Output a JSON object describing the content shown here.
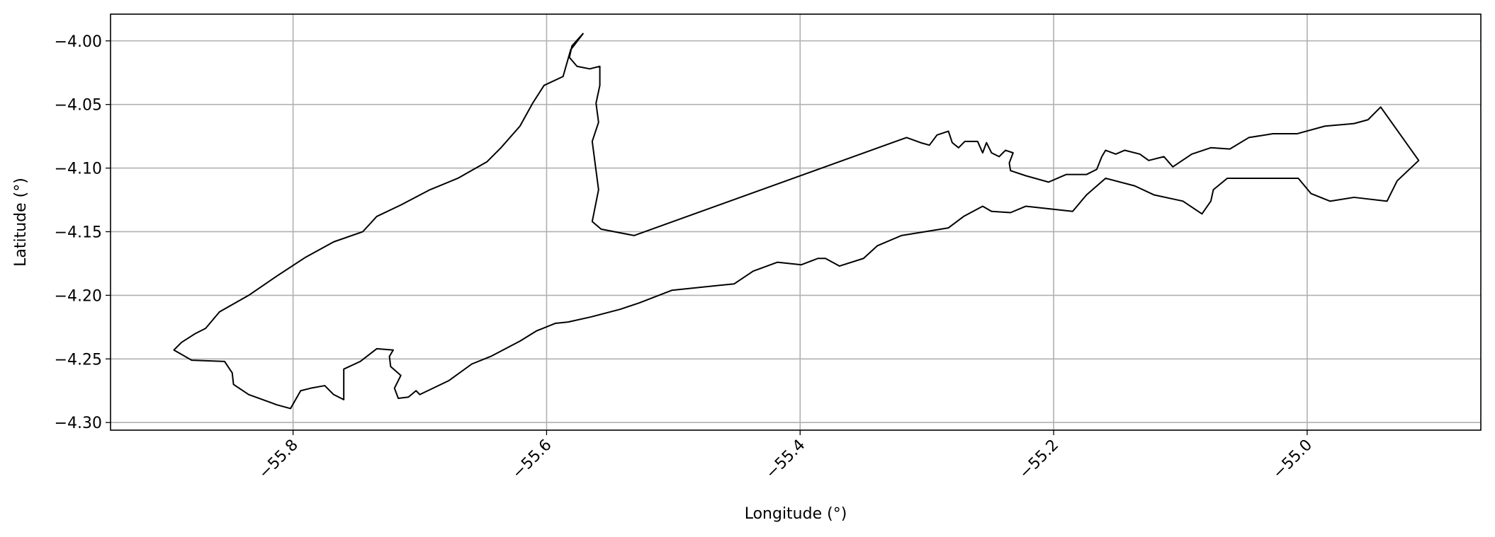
{
  "chart_data": {
    "type": "line",
    "xlabel": "Longitude (°)",
    "ylabel": "Latitude (°)",
    "xlim": [
      -55.944,
      -54.863
    ],
    "ylim": [
      -4.306,
      -3.979
    ],
    "xticks": [
      {
        "value": -55.8,
        "label": "−55.8"
      },
      {
        "value": -55.6,
        "label": "−55.6"
      },
      {
        "value": -55.4,
        "label": "−55.4"
      },
      {
        "value": -55.2,
        "label": "−55.2"
      },
      {
        "value": -55.0,
        "label": "−55.0"
      }
    ],
    "yticks": [
      {
        "value": -4.0,
        "label": "−4.00"
      },
      {
        "value": -4.05,
        "label": "−4.05"
      },
      {
        "value": -4.1,
        "label": "−4.10"
      },
      {
        "value": -4.15,
        "label": "−4.15"
      },
      {
        "value": -4.2,
        "label": "−4.20"
      },
      {
        "value": -4.25,
        "label": "−4.25"
      },
      {
        "value": -4.3,
        "label": "−4.30"
      }
    ],
    "grid": true,
    "series": [
      {
        "color": "#000000",
        "x": [
          -55.571,
          -55.58,
          -55.582,
          -55.576,
          -55.566,
          -55.558,
          -55.558,
          -55.561,
          -55.559,
          -55.564,
          -55.559,
          -55.564,
          -55.557,
          -55.531,
          -55.316,
          -55.305,
          -55.298,
          -55.292,
          -55.283,
          -55.28,
          -55.275,
          -55.27,
          -55.26,
          -55.256,
          -55.253,
          -55.249,
          -55.243,
          -55.238,
          -55.232,
          -55.235,
          -55.234,
          -55.222,
          -55.204,
          -55.19,
          -55.174,
          -55.166,
          -55.162,
          -55.159,
          -55.151,
          -55.144,
          -55.132,
          -55.125,
          -55.113,
          -55.106,
          -55.091,
          -55.076,
          -55.061,
          -55.046,
          -55.027,
          -55.008,
          -54.986,
          -54.963,
          -54.952,
          -54.942,
          -54.912,
          -54.929,
          -54.937,
          -54.963,
          -54.982,
          -54.997,
          -55.007,
          -55.046,
          -55.063,
          -55.074,
          -55.076,
          -55.083,
          -55.098,
          -55.121,
          -55.136,
          -55.159,
          -55.174,
          -55.185,
          -55.222,
          -55.234,
          -55.249,
          -55.256,
          -55.271,
          -55.283,
          -55.32,
          -55.339,
          -55.35,
          -55.369,
          -55.38,
          -55.386,
          -55.399,
          -55.418,
          -55.437,
          -55.452,
          -55.501,
          -55.527,
          -55.542,
          -55.565,
          -55.583,
          -55.593,
          -55.608,
          -55.621,
          -55.644,
          -55.659,
          -55.677,
          -55.7,
          -55.703,
          -55.709,
          -55.717,
          -55.72,
          -55.715,
          -55.723,
          -55.724,
          -55.721,
          -55.734,
          -55.747,
          -55.76,
          -55.76,
          -55.768,
          -55.775,
          -55.786,
          -55.794,
          -55.802,
          -55.813,
          -55.835,
          -55.847,
          -55.848,
          -55.854,
          -55.88,
          -55.894,
          -55.888,
          -55.877,
          -55.869,
          -55.858,
          -55.835,
          -55.813,
          -55.79,
          -55.768,
          -55.745,
          -55.734,
          -55.715,
          -55.692,
          -55.67,
          -55.647,
          -55.636,
          -55.621,
          -55.611,
          -55.602,
          -55.587,
          -55.581,
          -55.571
        ],
        "values": [
          -3.994,
          -4.004,
          -4.013,
          -4.02,
          -4.022,
          -4.02,
          -4.035,
          -4.049,
          -4.064,
          -4.079,
          -4.117,
          -4.142,
          -4.148,
          -4.153,
          -4.076,
          -4.08,
          -4.082,
          -4.074,
          -4.071,
          -4.08,
          -4.084,
          -4.079,
          -4.079,
          -4.088,
          -4.08,
          -4.088,
          -4.091,
          -4.086,
          -4.088,
          -4.096,
          -4.102,
          -4.106,
          -4.111,
          -4.105,
          -4.105,
          -4.101,
          -4.091,
          -4.086,
          -4.089,
          -4.086,
          -4.089,
          -4.094,
          -4.091,
          -4.099,
          -4.089,
          -4.084,
          -4.085,
          -4.076,
          -4.073,
          -4.073,
          -4.067,
          -4.065,
          -4.062,
          -4.052,
          -4.094,
          -4.11,
          -4.126,
          -4.123,
          -4.126,
          -4.12,
          -4.108,
          -4.108,
          -4.108,
          -4.117,
          -4.126,
          -4.136,
          -4.126,
          -4.121,
          -4.114,
          -4.108,
          -4.121,
          -4.134,
          -4.13,
          -4.135,
          -4.134,
          -4.13,
          -4.138,
          -4.147,
          -4.153,
          -4.161,
          -4.171,
          -4.177,
          -4.171,
          -4.171,
          -4.176,
          -4.174,
          -4.181,
          -4.191,
          -4.196,
          -4.206,
          -4.211,
          -4.217,
          -4.221,
          -4.222,
          -4.228,
          -4.236,
          -4.248,
          -4.254,
          -4.267,
          -4.278,
          -4.275,
          -4.28,
          -4.281,
          -4.273,
          -4.263,
          -4.256,
          -4.248,
          -4.243,
          -4.242,
          -4.252,
          -4.258,
          -4.282,
          -4.278,
          -4.271,
          -4.273,
          -4.275,
          -4.289,
          -4.286,
          -4.278,
          -4.27,
          -4.261,
          -4.252,
          -4.251,
          -4.243,
          -4.237,
          -4.23,
          -4.226,
          -4.213,
          -4.2,
          -4.185,
          -4.17,
          -4.158,
          -4.15,
          -4.138,
          -4.129,
          -4.117,
          -4.108,
          -4.095,
          -4.084,
          -4.067,
          -4.049,
          -4.035,
          -4.028,
          -4.007,
          -3.994
        ]
      }
    ]
  }
}
